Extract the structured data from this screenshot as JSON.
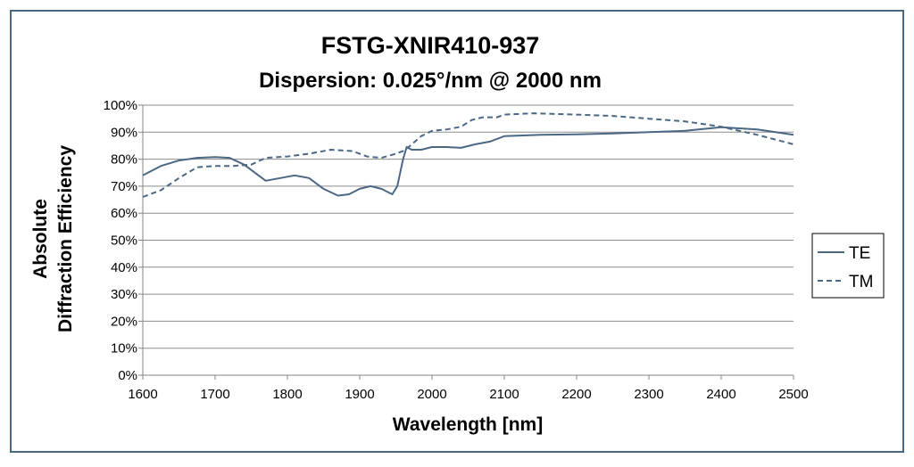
{
  "chart_data": {
    "type": "line",
    "title": "FSTG-XNIR410-937",
    "subtitle": "Dispersion: 0.025°/nm @ 2000 nm",
    "xlabel": "Wavelength [nm]",
    "ylabel_line1": "Absolute",
    "ylabel_line2": "Diffraction Efficiency",
    "xlim": [
      1600,
      2500
    ],
    "ylim": [
      0,
      100
    ],
    "x_ticks": [
      "1600",
      "1700",
      "1800",
      "1900",
      "2000",
      "2100",
      "2200",
      "2300",
      "2400",
      "2500"
    ],
    "y_ticks": [
      "0%",
      "10%",
      "20%",
      "30%",
      "40%",
      "50%",
      "60%",
      "70%",
      "80%",
      "90%",
      "100%"
    ],
    "grid": "horizontal",
    "legend_position": "right",
    "series": [
      {
        "name": "TE",
        "color": "#4a6784",
        "dash": "solid",
        "x": [
          1600,
          1625,
          1650,
          1675,
          1700,
          1720,
          1740,
          1755,
          1770,
          1790,
          1810,
          1830,
          1850,
          1870,
          1885,
          1900,
          1915,
          1930,
          1945,
          1952,
          1960,
          1965,
          1972,
          1985,
          2000,
          2020,
          2040,
          2060,
          2080,
          2100,
          2150,
          2200,
          2250,
          2300,
          2350,
          2400,
          2450,
          2500
        ],
        "y": [
          74,
          77.5,
          79.5,
          80.5,
          80.8,
          80.5,
          78,
          75,
          72,
          73,
          74,
          73,
          69,
          66.5,
          67,
          69,
          70,
          69,
          67,
          70,
          80,
          84.5,
          83.5,
          83.5,
          84.5,
          84.5,
          84.2,
          85.5,
          86.5,
          88.5,
          89,
          89.2,
          89.5,
          90,
          90.5,
          91.8,
          91,
          89
        ]
      },
      {
        "name": "TM",
        "color": "#4a6784",
        "dash": "dashed",
        "x": [
          1600,
          1625,
          1650,
          1675,
          1700,
          1725,
          1750,
          1770,
          1800,
          1830,
          1860,
          1890,
          1910,
          1930,
          1950,
          1960,
          1970,
          1985,
          2000,
          2020,
          2040,
          2055,
          2070,
          2090,
          2100,
          2140,
          2200,
          2250,
          2300,
          2350,
          2400,
          2450,
          2500
        ],
        "y": [
          66,
          68.5,
          73,
          77,
          77.5,
          77.5,
          78,
          80.5,
          81,
          82,
          83.5,
          83,
          81,
          80.5,
          82,
          83,
          85,
          88.5,
          90.5,
          91,
          92,
          94.5,
          95.5,
          95.5,
          96.5,
          97,
          96.5,
          96,
          95,
          94,
          92,
          89,
          85.5
        ]
      }
    ]
  },
  "colors": {
    "frame_border": "#4a6784",
    "gridline": "#8c8c8c",
    "axis": "#868686",
    "background": "#ffffff"
  }
}
